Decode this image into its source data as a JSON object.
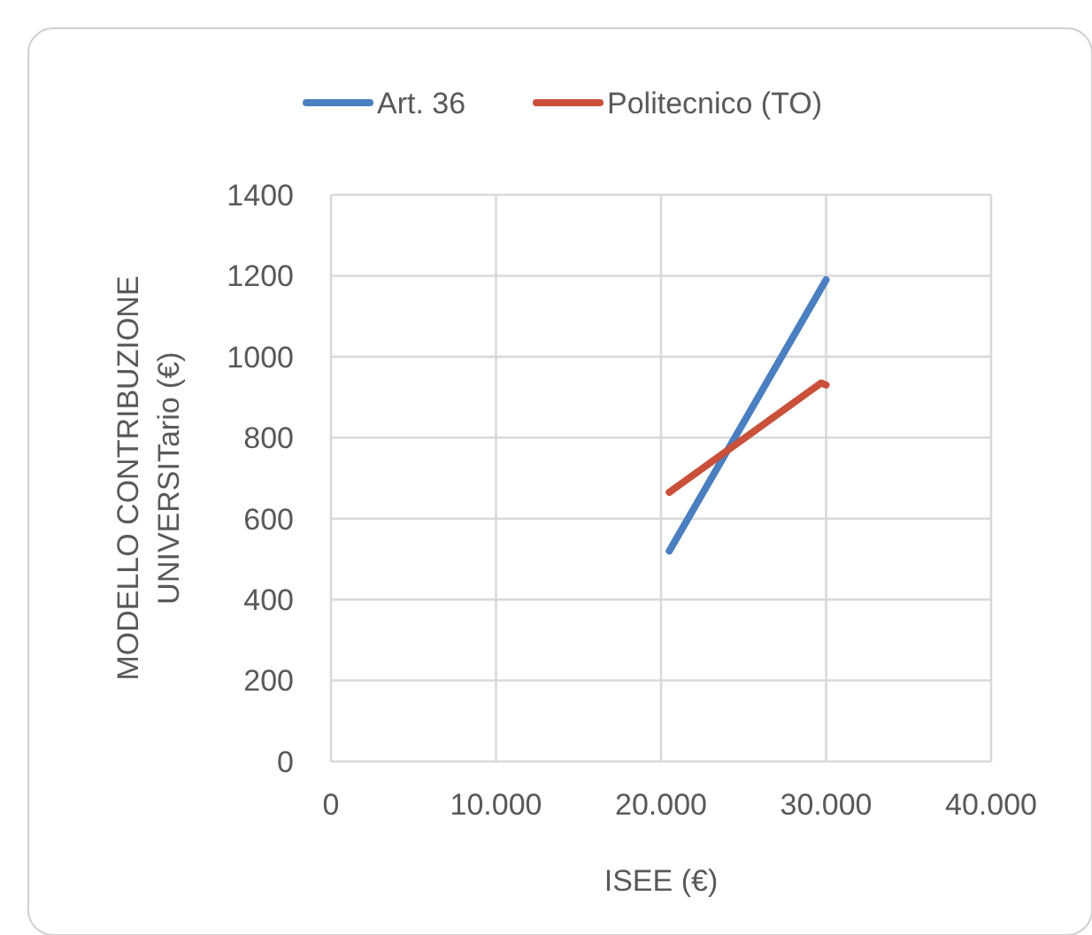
{
  "chart_data": {
    "type": "line",
    "xlabel": "ISEE (€)",
    "ylabel": "MODELLO CONTRIBUZIONE UNIVERSITario (€)",
    "xlim": [
      0,
      40000
    ],
    "xticks": [
      0,
      {
        "value": 10000,
        "label": "10.000"
      },
      {
        "value": 20000,
        "label": "20.000"
      },
      {
        "value": 30000,
        "label": "30.000"
      },
      {
        "value": 40000,
        "label": "40.000"
      }
    ],
    "ylim": [
      0,
      1400
    ],
    "yticks": [
      0,
      200,
      400,
      600,
      800,
      1000,
      1200,
      1400
    ],
    "grid": true,
    "legend": "top",
    "line_style": "solid",
    "marker": "none",
    "series": [
      {
        "name": "Art. 36",
        "color": "#4a7fc1",
        "x": [
          20500,
          30000
        ],
        "values": [
          520,
          1190
        ]
      },
      {
        "name": "Politecnico (TO)",
        "color": "#c9503a",
        "x": [
          20500,
          29700,
          30000
        ],
        "values": [
          665,
          935,
          930
        ]
      }
    ]
  }
}
